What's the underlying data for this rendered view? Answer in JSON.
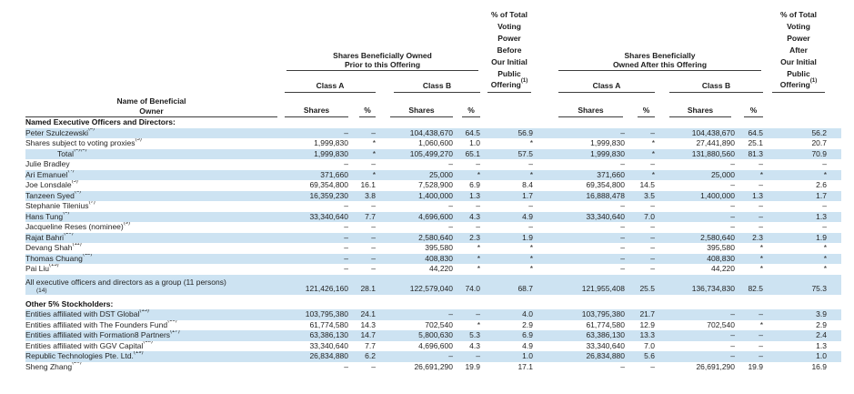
{
  "colors": {
    "row_stripe": "#cde3f2"
  },
  "header": {
    "name_col": {
      "line1": "Name of Beneficial",
      "line2": "Owner"
    },
    "prior_group": {
      "line1": "Shares Beneficially Owned",
      "line2": "Prior to this Offering"
    },
    "after_group": {
      "line1": "Shares Beneficially",
      "line2": "Owned After this Offering"
    },
    "voting_before": {
      "lines": [
        "% of Total",
        "Voting",
        "Power",
        "Before",
        "Our Initial",
        "Public"
      ],
      "offering_label": "Offering",
      "footnote": "(1)"
    },
    "voting_after": {
      "lines": [
        "% of Total",
        "Voting",
        "Power",
        "After",
        "Our Initial",
        "Public"
      ],
      "offering_label": "Offering",
      "footnote": "(1)"
    },
    "class_a": "Class A",
    "class_b": "Class B",
    "shares": "Shares",
    "percent": "%"
  },
  "rows": [
    {
      "type": "section",
      "label": "Named Executive Officers and Directors:"
    },
    {
      "type": "data",
      "name": "Peter Szulczewski",
      "footnote": "(2)",
      "values": [
        "–",
        "–",
        "104,438,670",
        "64.5",
        "56.9",
        "–",
        "–",
        "104,438,670",
        "64.5",
        "56.2"
      ]
    },
    {
      "type": "data",
      "name": "Shares subject to voting proxies",
      "footnote": "(3)",
      "values": [
        "1,999,830",
        "*",
        "1,060,600",
        "1.0",
        "*",
        "1,999,830",
        "*",
        "27,441,890",
        "25.1",
        "20.7"
      ]
    },
    {
      "type": "data",
      "name": "Total",
      "footnote": "(2)(3)",
      "indent": true,
      "values": [
        "1,999,830",
        "*",
        "105,499,270",
        "65.1",
        "57.5",
        "1,999,830",
        "*",
        "131,880,560",
        "81.3",
        "70.9"
      ]
    },
    {
      "type": "data",
      "name": "Julie Bradley",
      "footnote": "",
      "values": [
        "–",
        "–",
        "–",
        "–",
        "–",
        "–",
        "–",
        "–",
        "–",
        "–"
      ]
    },
    {
      "type": "data",
      "name": "Ari Emanuel",
      "footnote": "(4)",
      "values": [
        "371,660",
        "*",
        "25,000",
        "*",
        "*",
        "371,660",
        "*",
        "25,000",
        "*",
        "*"
      ]
    },
    {
      "type": "data",
      "name": "Joe Lonsdale",
      "footnote": "(5)",
      "values": [
        "69,354,800",
        "16.1",
        "7,528,900",
        "6.9",
        "8.4",
        "69,354,800",
        "14.5",
        "–",
        "–",
        "2.6"
      ]
    },
    {
      "type": "data",
      "name": "Tanzeen Syed",
      "footnote": "(6)",
      "values": [
        "16,359,230",
        "3.8",
        "1,400,000",
        "1.3",
        "1.7",
        "16,888,478",
        "3.5",
        "1,400,000",
        "1.3",
        "1.7"
      ]
    },
    {
      "type": "data",
      "name": "Stephanie Tilenius",
      "footnote": "(7)",
      "values": [
        "–",
        "–",
        "–",
        "–",
        "–",
        "–",
        "–",
        "–",
        "–",
        "–"
      ]
    },
    {
      "type": "data",
      "name": "Hans Tung",
      "footnote": "(8)",
      "values": [
        "33,340,640",
        "7.7",
        "4,696,600",
        "4.3",
        "4.9",
        "33,340,640",
        "7.0",
        "–",
        "–",
        "1.3"
      ]
    },
    {
      "type": "data",
      "name": "Jacqueline Reses (nominee)",
      "footnote": "(9)",
      "values": [
        "–",
        "–",
        "–",
        "–",
        "–",
        "–",
        "–",
        "–",
        "–",
        "–"
      ]
    },
    {
      "type": "data",
      "name": "Rajat Bahri",
      "footnote": "(10)",
      "values": [
        "–",
        "–",
        "2,580,640",
        "2.3",
        "1.9",
        "–",
        "–",
        "2,580,640",
        "2.3",
        "1.9"
      ]
    },
    {
      "type": "data",
      "name": "Devang Shah",
      "footnote": "(11)",
      "values": [
        "–",
        "–",
        "395,580",
        "*",
        "*",
        "–",
        "–",
        "395,580",
        "*",
        "*"
      ]
    },
    {
      "type": "data",
      "name": "Thomas Chuang",
      "footnote": "(12)",
      "values": [
        "–",
        "–",
        "408,830",
        "*",
        "*",
        "–",
        "–",
        "408,830",
        "*",
        "*"
      ]
    },
    {
      "type": "data",
      "name": "Pai Liu",
      "footnote": "(13)",
      "values": [
        "–",
        "–",
        "44,220",
        "*",
        "*",
        "–",
        "–",
        "44,220",
        "*",
        "*"
      ]
    },
    {
      "type": "data",
      "name": "All executive officers and directors as a group (11 persons)",
      "footnote": "(14)",
      "tall": true,
      "values": [
        "121,426,160",
        "28.1",
        "122,579,040",
        "74.0",
        "68.7",
        "121,955,408",
        "25.5",
        "136,734,830",
        "82.5",
        "75.3"
      ]
    },
    {
      "type": "spacer"
    },
    {
      "type": "section",
      "label": "Other 5% Stockholders:"
    },
    {
      "type": "data",
      "name": "Entities affiliated with DST Global",
      "footnote": "(15)",
      "values": [
        "103,795,380",
        "24.1",
        "–",
        "–",
        "4.0",
        "103,795,380",
        "21.7",
        "–",
        "–",
        "3.9"
      ]
    },
    {
      "type": "data",
      "name": "Entities affiliated with The Founders Fund",
      "footnote": "(16)",
      "values": [
        "61,774,580",
        "14.3",
        "702,540",
        "*",
        "2.9",
        "61,774,580",
        "12.9",
        "702,540",
        "*",
        "2.9"
      ]
    },
    {
      "type": "data",
      "name": "Entities affiliated with Formation8 Partners",
      "footnote": "(17)",
      "values": [
        "63,386,130",
        "14.7",
        "5,800,630",
        "5.3",
        "6.9",
        "63,386,130",
        "13.3",
        "–",
        "–",
        "2.4"
      ]
    },
    {
      "type": "data",
      "name": "Entities affiliated with GGV Capital",
      "footnote": "(18)",
      "values": [
        "33,340,640",
        "7.7",
        "4,696,600",
        "4.3",
        "4.9",
        "33,340,640",
        "7.0",
        "–",
        "–",
        "1.3"
      ]
    },
    {
      "type": "data",
      "name": "Republic Technologies Pte. Ltd.",
      "footnote": "(19)",
      "values": [
        "26,834,880",
        "6.2",
        "–",
        "–",
        "1.0",
        "26,834,880",
        "5.6",
        "–",
        "–",
        "1.0"
      ]
    },
    {
      "type": "data",
      "name": "Sheng Zhang",
      "footnote": "(20)",
      "values": [
        "–",
        "–",
        "26,691,290",
        "19.9",
        "17.1",
        "–",
        "–",
        "26,691,290",
        "19.9",
        "16.9"
      ]
    }
  ]
}
